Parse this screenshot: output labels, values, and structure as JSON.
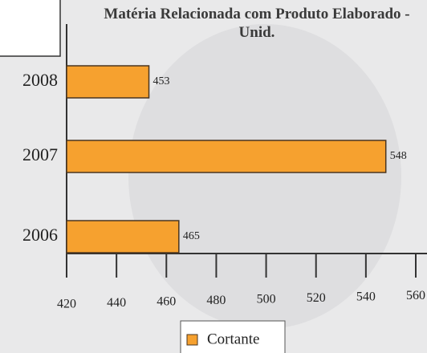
{
  "chart_data": {
    "type": "bar",
    "orientation": "horizontal",
    "title": "Matéria Relacionada com Produto Elaborado - Unid.",
    "categories": [
      "2008",
      "2007",
      "2006"
    ],
    "series": [
      {
        "name": "Cortante",
        "color": "#f6a12f",
        "values": [
          453,
          548,
          465
        ]
      }
    ],
    "xlim": [
      420,
      560
    ],
    "xticks": [
      420,
      440,
      460,
      480,
      500,
      520,
      540,
      560
    ]
  }
}
